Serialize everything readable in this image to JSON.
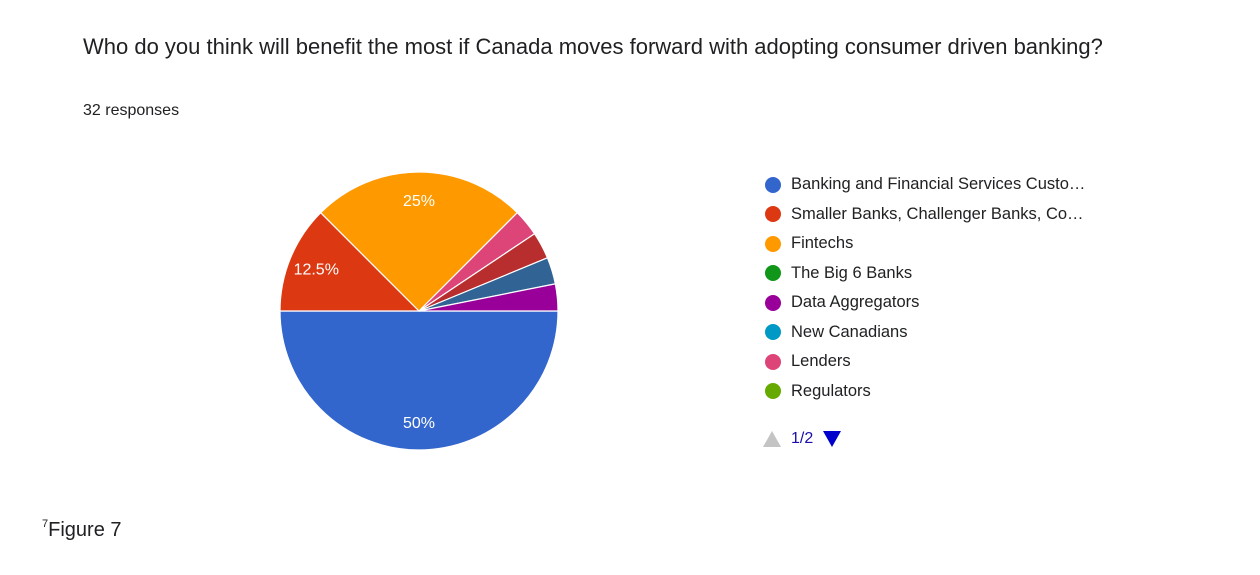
{
  "question": {
    "title": "Who do you think will benefit the most if Canada moves forward with adopting consumer driven banking?",
    "responses": "32 responses"
  },
  "chart_data": {
    "type": "pie",
    "categories": [
      "Banking and Financial Services Custo…",
      "Smaller Banks, Challenger Banks, Co…",
      "Fintechs",
      "The Big 6 Banks",
      "Data Aggregators",
      "New Canadians",
      "Lenders",
      "Regulators"
    ],
    "slices": [
      {
        "label": "Banking and Financial Services Custo…",
        "value": 50,
        "color": "#3366cc",
        "data_label": "50%"
      },
      {
        "label": "Smaller Banks, Challenger Banks, Co…",
        "value": 12.5,
        "color": "#dc3912",
        "data_label": "12.5%"
      },
      {
        "label": "Fintechs",
        "value": 25,
        "color": "#ff9900",
        "data_label": "25%"
      },
      {
        "label": "Lenders",
        "value": 3.125,
        "color": "#dd4477",
        "data_label": ""
      },
      {
        "label": "",
        "value": 3.125,
        "color": "#b82e2e",
        "data_label": ""
      },
      {
        "label": "",
        "value": 3.125,
        "color": "#316395",
        "data_label": ""
      },
      {
        "label": "Data Aggregators",
        "value": 3.125,
        "color": "#990099",
        "data_label": ""
      }
    ],
    "legend_position": "right"
  },
  "legend": {
    "items": [
      {
        "label": "Banking and Financial Services Custo…",
        "color": "#3366cc"
      },
      {
        "label": "Smaller Banks, Challenger Banks, Co…",
        "color": "#dc3912"
      },
      {
        "label": "Fintechs",
        "color": "#ff9900"
      },
      {
        "label": "The Big 6 Banks",
        "color": "#109618"
      },
      {
        "label": "Data Aggregators",
        "color": "#990099"
      },
      {
        "label": "New Canadians",
        "color": "#0099c6"
      },
      {
        "label": "Lenders",
        "color": "#dd4477"
      },
      {
        "label": "Regulators",
        "color": "#66aa00"
      }
    ]
  },
  "pager": {
    "text": "1/2"
  },
  "caption": {
    "superscript": "7",
    "text": "Figure 7"
  }
}
